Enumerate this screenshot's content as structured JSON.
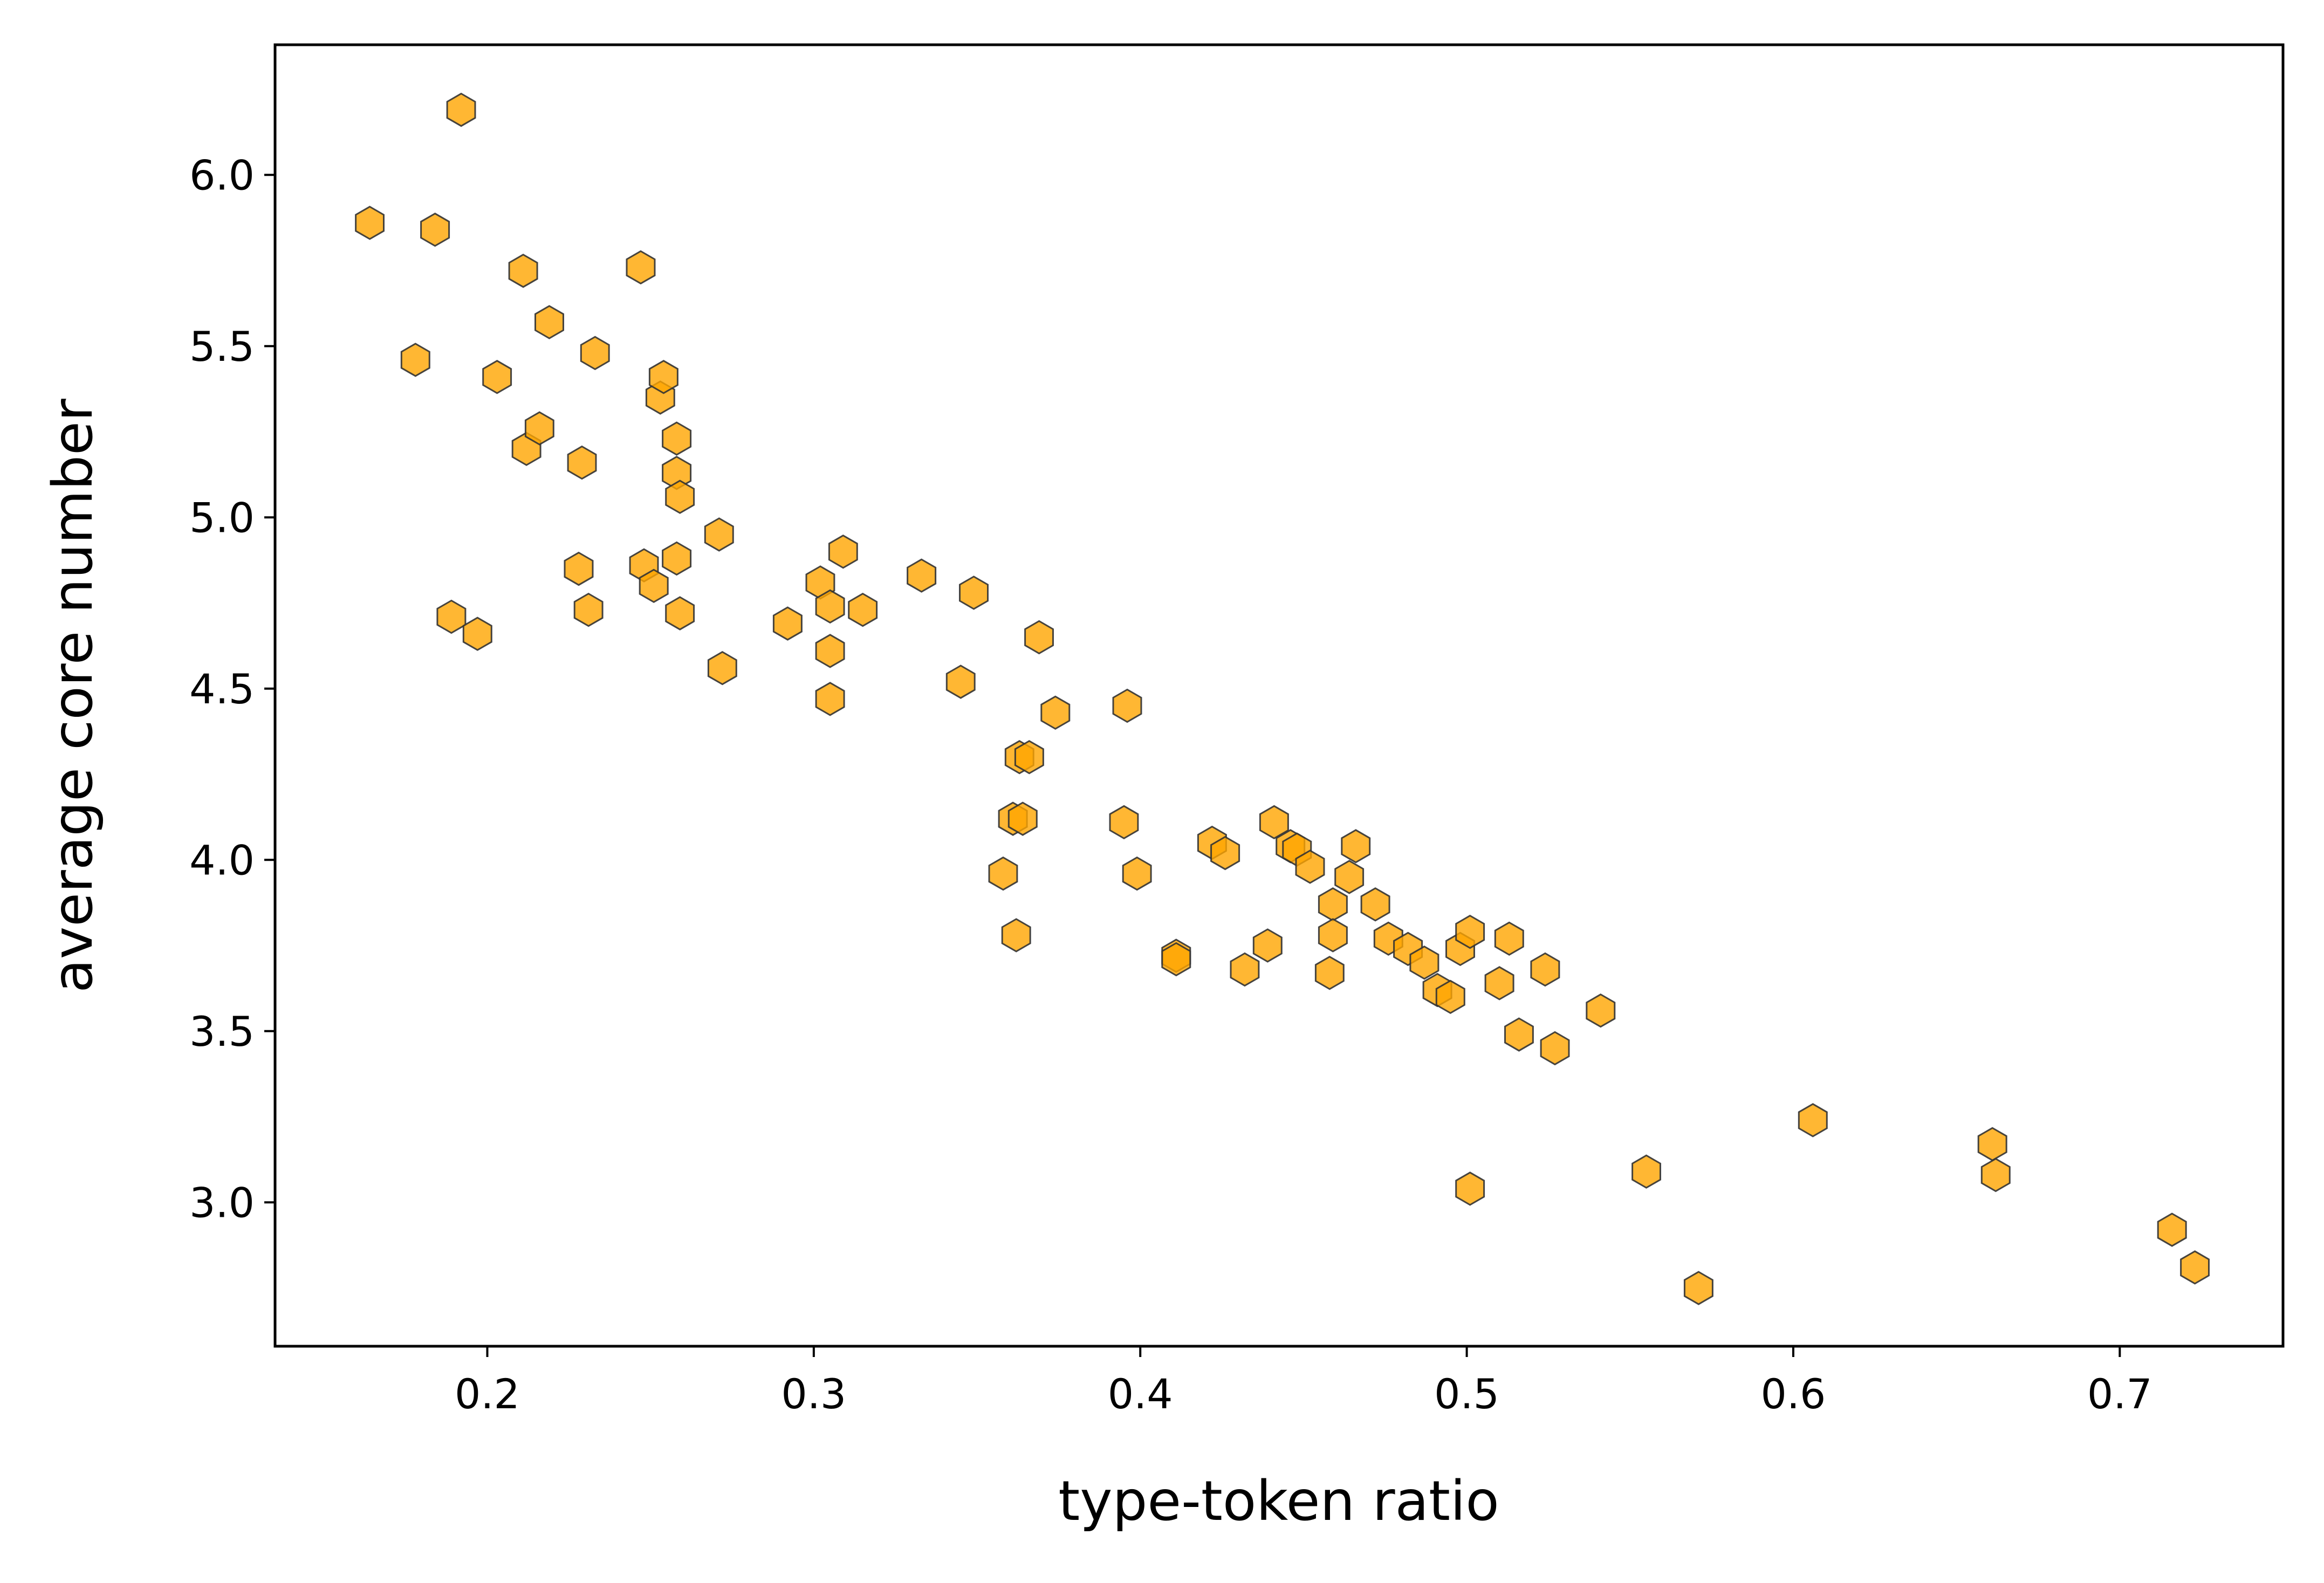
{
  "chart_data": {
    "type": "scatter",
    "title": "",
    "xlabel": "type-token ratio",
    "ylabel": "average core number",
    "xlim": [
      0.135,
      0.75
    ],
    "ylim": [
      2.58,
      6.38
    ],
    "xticks": [
      0.2,
      0.3,
      0.4,
      0.5,
      0.6,
      0.7
    ],
    "xtick_labels": [
      "0.2",
      "0.3",
      "0.4",
      "0.5",
      "0.6",
      "0.7"
    ],
    "yticks": [
      3.0,
      3.5,
      4.0,
      4.5,
      5.0,
      5.5,
      6.0
    ],
    "ytick_labels": [
      "3.0",
      "3.5",
      "4.0",
      "4.5",
      "5.0",
      "5.5",
      "6.0"
    ],
    "grid": false,
    "legend": null,
    "marker": "hexagon",
    "marker_color": "#ffa500",
    "marker_edge_color": "#333333",
    "marker_alpha": 0.8,
    "points": [
      {
        "x": 0.164,
        "y": 5.86
      },
      {
        "x": 0.178,
        "y": 5.46
      },
      {
        "x": 0.184,
        "y": 5.84
      },
      {
        "x": 0.189,
        "y": 4.71
      },
      {
        "x": 0.192,
        "y": 6.19
      },
      {
        "x": 0.197,
        "y": 4.66
      },
      {
        "x": 0.203,
        "y": 5.41
      },
      {
        "x": 0.211,
        "y": 5.72
      },
      {
        "x": 0.212,
        "y": 5.2
      },
      {
        "x": 0.216,
        "y": 5.26
      },
      {
        "x": 0.219,
        "y": 5.57
      },
      {
        "x": 0.228,
        "y": 4.85
      },
      {
        "x": 0.229,
        "y": 5.16
      },
      {
        "x": 0.231,
        "y": 4.73
      },
      {
        "x": 0.233,
        "y": 5.48
      },
      {
        "x": 0.247,
        "y": 5.73
      },
      {
        "x": 0.248,
        "y": 4.86
      },
      {
        "x": 0.251,
        "y": 4.8
      },
      {
        "x": 0.253,
        "y": 5.35
      },
      {
        "x": 0.254,
        "y": 5.41
      },
      {
        "x": 0.258,
        "y": 5.23
      },
      {
        "x": 0.258,
        "y": 5.13
      },
      {
        "x": 0.259,
        "y": 5.06
      },
      {
        "x": 0.258,
        "y": 4.88
      },
      {
        "x": 0.259,
        "y": 4.72
      },
      {
        "x": 0.271,
        "y": 4.95
      },
      {
        "x": 0.272,
        "y": 4.56
      },
      {
        "x": 0.292,
        "y": 4.69
      },
      {
        "x": 0.302,
        "y": 4.81
      },
      {
        "x": 0.305,
        "y": 4.74
      },
      {
        "x": 0.305,
        "y": 4.61
      },
      {
        "x": 0.305,
        "y": 4.47
      },
      {
        "x": 0.309,
        "y": 4.9
      },
      {
        "x": 0.315,
        "y": 4.73
      },
      {
        "x": 0.333,
        "y": 4.83
      },
      {
        "x": 0.345,
        "y": 4.52
      },
      {
        "x": 0.349,
        "y": 4.78
      },
      {
        "x": 0.358,
        "y": 3.96
      },
      {
        "x": 0.361,
        "y": 4.12
      },
      {
        "x": 0.362,
        "y": 3.78
      },
      {
        "x": 0.363,
        "y": 4.3
      },
      {
        "x": 0.364,
        "y": 4.12
      },
      {
        "x": 0.366,
        "y": 4.3
      },
      {
        "x": 0.369,
        "y": 4.65
      },
      {
        "x": 0.374,
        "y": 4.43
      },
      {
        "x": 0.395,
        "y": 4.11
      },
      {
        "x": 0.396,
        "y": 4.45
      },
      {
        "x": 0.399,
        "y": 3.96
      },
      {
        "x": 0.411,
        "y": 3.72
      },
      {
        "x": 0.411,
        "y": 3.71
      },
      {
        "x": 0.422,
        "y": 4.05
      },
      {
        "x": 0.426,
        "y": 4.02
      },
      {
        "x": 0.432,
        "y": 3.68
      },
      {
        "x": 0.439,
        "y": 3.75
      },
      {
        "x": 0.441,
        "y": 4.11
      },
      {
        "x": 0.446,
        "y": 4.04
      },
      {
        "x": 0.448,
        "y": 4.03
      },
      {
        "x": 0.452,
        "y": 3.98
      },
      {
        "x": 0.458,
        "y": 3.67
      },
      {
        "x": 0.459,
        "y": 3.87
      },
      {
        "x": 0.459,
        "y": 3.78
      },
      {
        "x": 0.464,
        "y": 3.95
      },
      {
        "x": 0.466,
        "y": 4.04
      },
      {
        "x": 0.472,
        "y": 3.87
      },
      {
        "x": 0.476,
        "y": 3.77
      },
      {
        "x": 0.482,
        "y": 3.74
      },
      {
        "x": 0.487,
        "y": 3.7
      },
      {
        "x": 0.491,
        "y": 3.62
      },
      {
        "x": 0.495,
        "y": 3.6
      },
      {
        "x": 0.498,
        "y": 3.74
      },
      {
        "x": 0.501,
        "y": 3.79
      },
      {
        "x": 0.501,
        "y": 3.04
      },
      {
        "x": 0.51,
        "y": 3.64
      },
      {
        "x": 0.513,
        "y": 3.77
      },
      {
        "x": 0.516,
        "y": 3.49
      },
      {
        "x": 0.524,
        "y": 3.68
      },
      {
        "x": 0.527,
        "y": 3.45
      },
      {
        "x": 0.541,
        "y": 3.56
      },
      {
        "x": 0.555,
        "y": 3.09
      },
      {
        "x": 0.571,
        "y": 2.75
      },
      {
        "x": 0.606,
        "y": 3.24
      },
      {
        "x": 0.661,
        "y": 3.17
      },
      {
        "x": 0.662,
        "y": 3.08
      },
      {
        "x": 0.716,
        "y": 2.92
      },
      {
        "x": 0.723,
        "y": 2.81
      }
    ]
  }
}
